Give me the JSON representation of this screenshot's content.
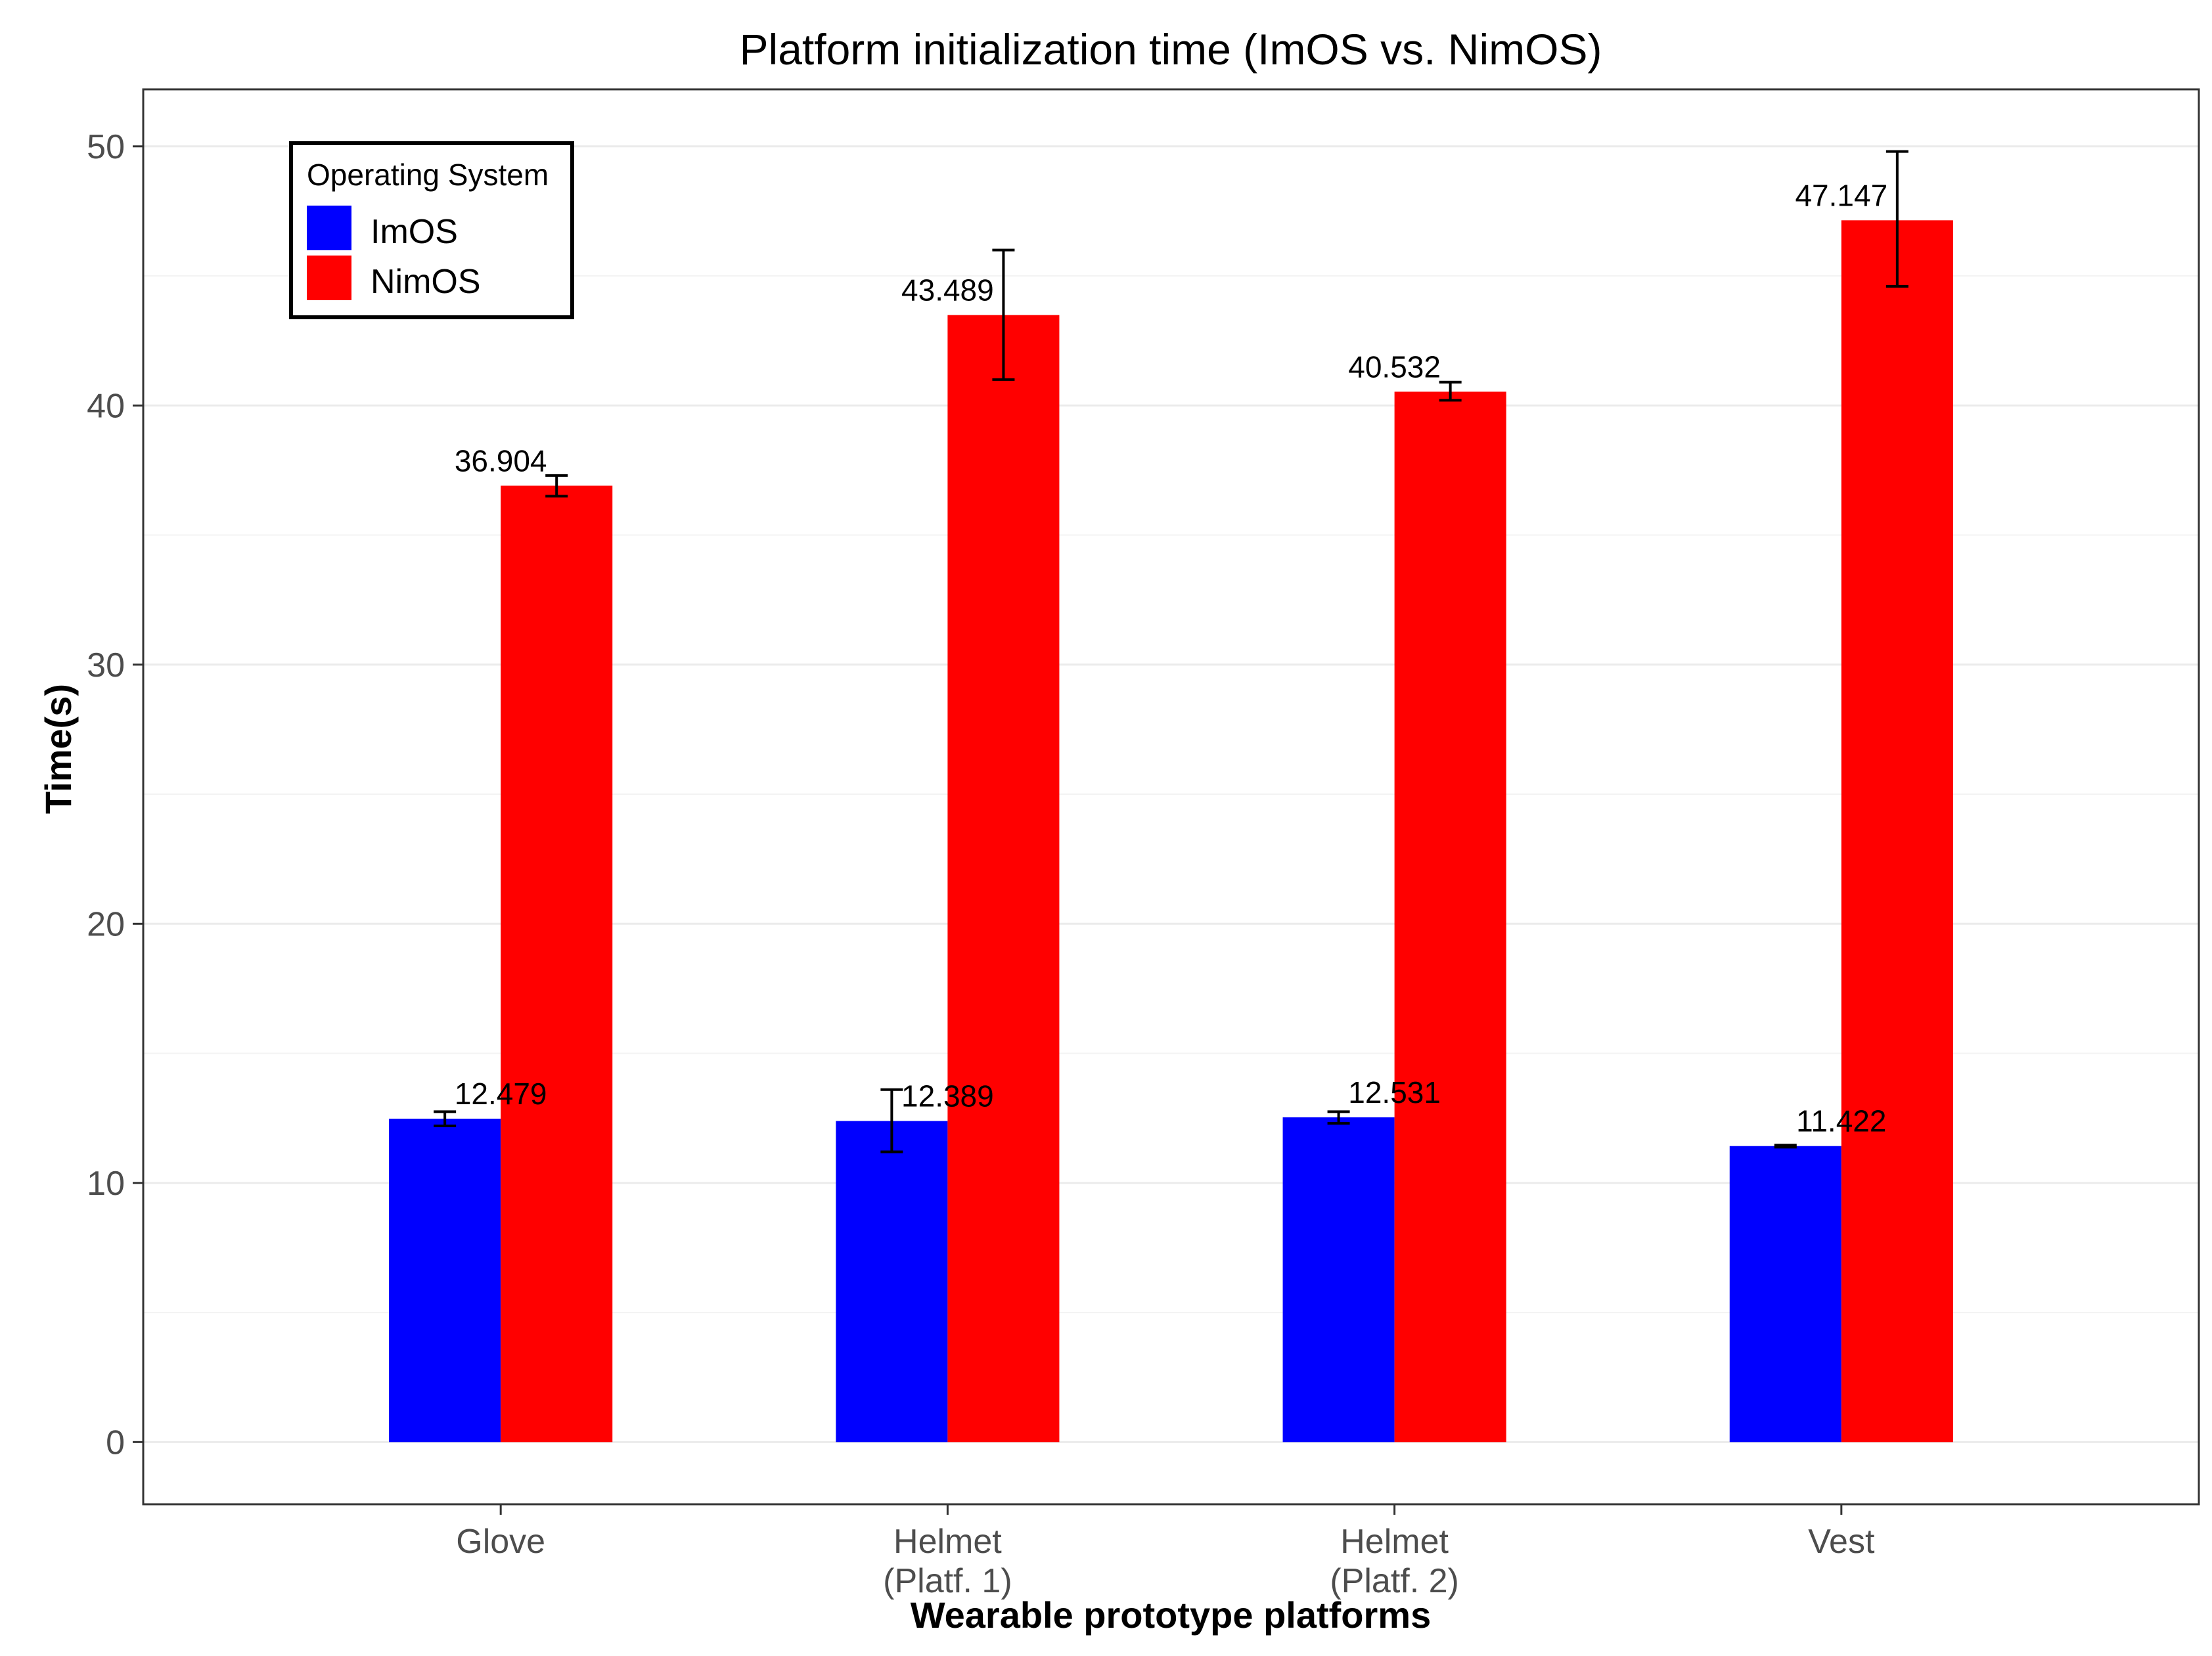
{
  "chart_data": {
    "type": "bar",
    "title": "Platform initialization time (ImOS vs. NimOS)",
    "xlabel": "Wearable prototype platforms",
    "ylabel": "Time(s)",
    "ylim": [
      -2.4,
      52.2
    ],
    "yticks": [
      0,
      10,
      20,
      30,
      40,
      50
    ],
    "ytick_labels": [
      "0",
      "10",
      "20",
      "30",
      "40",
      "50"
    ],
    "grid": true,
    "categories": [
      [
        "Glove"
      ],
      [
        "Helmet",
        "(Platf. 1)"
      ],
      [
        "Helmet",
        "(Platf. 2)"
      ],
      [
        "Vest"
      ]
    ],
    "legend": {
      "title": "Operating System",
      "position": "top-left"
    },
    "series": [
      {
        "name": "ImOS",
        "color": "#0000ff",
        "values": [
          12.479,
          12.389,
          12.531,
          11.422
        ],
        "value_labels": [
          "12.479",
          "12.389",
          "12.531",
          "11.422"
        ],
        "err_low": [
          12.2,
          11.2,
          12.3,
          11.38
        ],
        "err_high": [
          12.75,
          13.6,
          12.75,
          11.46
        ]
      },
      {
        "name": "NimOS",
        "color": "#ff0000",
        "values": [
          36.904,
          43.489,
          40.532,
          47.147
        ],
        "value_labels": [
          "36.904",
          "43.489",
          "40.532",
          "47.147"
        ],
        "err_low": [
          36.5,
          41.0,
          40.2,
          44.6
        ],
        "err_high": [
          37.3,
          46.0,
          40.9,
          49.8
        ]
      }
    ]
  }
}
